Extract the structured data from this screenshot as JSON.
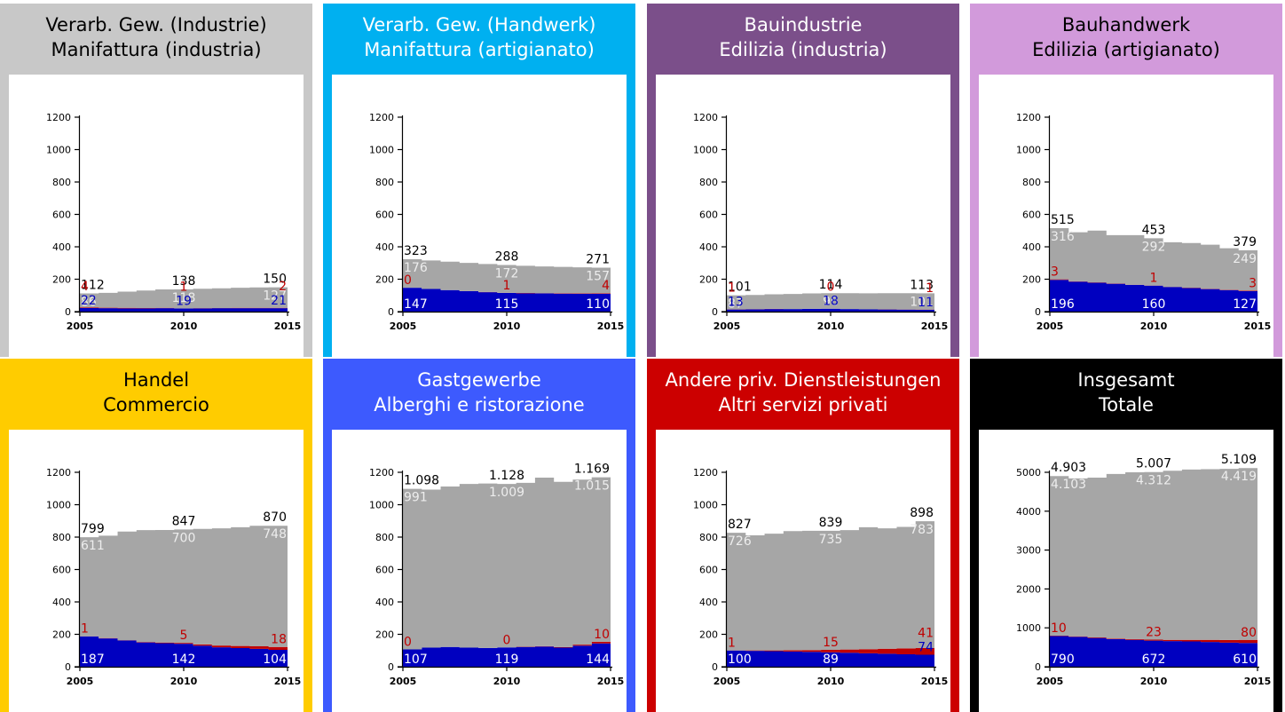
{
  "colors": {
    "gray": "#a6a6a6",
    "gray_label": "#ededed",
    "gray_label_outside": "#a6a6a6",
    "red": "#c00000",
    "blue": "#0000c0",
    "blue_label_inside": "#ffffff"
  },
  "charts": [
    {
      "id": "industria",
      "title": [
        "Verarb. Gew. (Industrie)",
        "Manifattura (industria)"
      ],
      "bg": "#c8c8c8",
      "title_color": "#000000",
      "chart_data": {
        "type": "area",
        "x": [
          2005,
          2006,
          2007,
          2008,
          2009,
          2010,
          2011,
          2012,
          2013,
          2014,
          2015
        ],
        "x_ticks": [
          "2005",
          "2010",
          "2015"
        ],
        "y_ticks": [
          "0",
          "200",
          "400",
          "600",
          "800",
          "1000",
          "1200"
        ],
        "ylim": [
          0,
          1200
        ],
        "series": [
          {
            "color": "blue",
            "values": [
              22,
              21,
              20,
              20,
              21,
              19,
              20,
              21,
              21,
              21,
              21
            ]
          },
          {
            "color": "red",
            "values": [
              4,
              3,
              3,
              2,
              2,
              1,
              1,
              1,
              2,
              2,
              2
            ]
          },
          {
            "color": "gray",
            "values": [
              86,
              92,
              100,
              108,
              114,
              118,
              120,
              122,
              124,
              126,
              127
            ]
          }
        ],
        "totals": [
          "112",
          "138",
          "150"
        ],
        "labels": {
          "gray": [
            "86",
            "118",
            "127"
          ],
          "red": [
            "4",
            "1",
            "2"
          ],
          "blue": [
            "22",
            "19",
            "21"
          ]
        }
      }
    },
    {
      "id": "artigianato",
      "title": [
        "Verarb. Gew. (Handwerk)",
        "Manifattura (artigianato)"
      ],
      "bg": "#00b0f0",
      "title_color": "#ffffff",
      "chart_data": {
        "type": "area",
        "x": [
          2005,
          2006,
          2007,
          2008,
          2009,
          2010,
          2011,
          2012,
          2013,
          2014,
          2015
        ],
        "x_ticks": [
          "2005",
          "2010",
          "2015"
        ],
        "y_ticks": [
          "0",
          "200",
          "400",
          "600",
          "800",
          "1000",
          "1200"
        ],
        "ylim": [
          0,
          1200
        ],
        "series": [
          {
            "color": "blue",
            "values": [
              147,
              140,
              133,
              126,
              120,
              115,
              113,
              112,
              111,
              110,
              110
            ]
          },
          {
            "color": "red",
            "values": [
              0,
              0,
              0,
              1,
              1,
              1,
              2,
              2,
              3,
              3,
              4
            ]
          },
          {
            "color": "gray",
            "values": [
              176,
              176,
              175,
              174,
              173,
              172,
              168,
              165,
              162,
              160,
              157
            ]
          }
        ],
        "totals": [
          "323",
          "288",
          "271"
        ],
        "labels": {
          "gray": [
            "176",
            "172",
            "157"
          ],
          "red": [
            "0",
            "1",
            "4"
          ],
          "blue": [
            "147",
            "115",
            "110"
          ]
        }
      }
    },
    {
      "id": "bauindustrie",
      "title": [
        "Bauindustrie",
        "Edilizia (industria)"
      ],
      "bg": "#7b4f8a",
      "title_color": "#ffffff",
      "chart_data": {
        "type": "area",
        "x": [
          2005,
          2006,
          2007,
          2008,
          2009,
          2010,
          2011,
          2012,
          2013,
          2014,
          2015
        ],
        "x_ticks": [
          "2005",
          "2010",
          "2015"
        ],
        "y_ticks": [
          "0",
          "200",
          "400",
          "600",
          "800",
          "1000",
          "1200"
        ],
        "ylim": [
          0,
          1200
        ],
        "series": [
          {
            "color": "blue",
            "values": [
              13,
              14,
              16,
              16,
              17,
              18,
              16,
              14,
              13,
              12,
              11
            ]
          },
          {
            "color": "red",
            "values": [
              1,
              1,
              1,
              0,
              0,
              0,
              0,
              0,
              1,
              1,
              1
            ]
          },
          {
            "color": "gray",
            "values": [
              87,
              88,
              90,
              93,
              95,
              96,
              98,
              99,
              100,
              101,
              101
            ]
          }
        ],
        "totals": [
          "101",
          "114",
          "113"
        ],
        "labels": {
          "gray": [
            "87",
            "96",
            "101"
          ],
          "red": [
            "1",
            "0",
            "1"
          ],
          "blue": [
            "13",
            "18",
            "11"
          ]
        }
      }
    },
    {
      "id": "bauhandwerk",
      "title": [
        "Bauhandwerk",
        "Edilizia (artigianato)"
      ],
      "bg": "#d29adb",
      "title_color": "#000000",
      "chart_data": {
        "type": "area",
        "x": [
          2005,
          2006,
          2007,
          2008,
          2009,
          2010,
          2011,
          2012,
          2013,
          2014,
          2015
        ],
        "x_ticks": [
          "2005",
          "2010",
          "2015"
        ],
        "y_ticks": [
          "0",
          "200",
          "400",
          "600",
          "800",
          "1000",
          "1200"
        ],
        "ylim": [
          0,
          1200
        ],
        "series": [
          {
            "color": "blue",
            "values": [
              196,
              185,
              178,
              172,
              165,
              160,
              152,
              145,
              139,
              133,
              127
            ]
          },
          {
            "color": "red",
            "values": [
              3,
              2,
              2,
              2,
              1,
              1,
              1,
              2,
              2,
              2,
              3
            ]
          },
          {
            "color": "gray",
            "values": [
              316,
              303,
              320,
              298,
              306,
              292,
              275,
              276,
              272,
              256,
              249
            ]
          }
        ],
        "totals": [
          "515",
          "453",
          "379"
        ],
        "labels": {
          "gray": [
            "316",
            "292",
            "249"
          ],
          "red": [
            "3",
            "1",
            "3"
          ],
          "blue": [
            "196",
            "160",
            "127"
          ]
        }
      }
    },
    {
      "id": "handel",
      "title": [
        "Handel",
        "Commercio"
      ],
      "bg": "#ffcc00",
      "title_color": "#000000",
      "chart_data": {
        "type": "area",
        "x": [
          2005,
          2006,
          2007,
          2008,
          2009,
          2010,
          2011,
          2012,
          2013,
          2014,
          2015
        ],
        "x_ticks": [
          "2005",
          "2010",
          "2015"
        ],
        "y_ticks": [
          "0",
          "200",
          "400",
          "600",
          "800",
          "1000",
          "1200"
        ],
        "ylim": [
          0,
          1200
        ],
        "series": [
          {
            "color": "blue",
            "values": [
              187,
              175,
              162,
              150,
              145,
              142,
              130,
              120,
              115,
              110,
              104
            ]
          },
          {
            "color": "red",
            "values": [
              1,
              2,
              2,
              3,
              4,
              5,
              8,
              11,
              13,
              16,
              18
            ]
          },
          {
            "color": "gray",
            "values": [
              611,
              632,
              670,
              690,
              695,
              700,
              713,
              723,
              733,
              744,
              748
            ]
          }
        ],
        "totals": [
          "799",
          "847",
          "870"
        ],
        "labels": {
          "gray": [
            "611",
            "700",
            "748"
          ],
          "red": [
            "1",
            "5",
            "18"
          ],
          "blue": [
            "187",
            "142",
            "104"
          ]
        }
      }
    },
    {
      "id": "gastgewerbe",
      "title": [
        "Gastgewerbe",
        "Alberghi e ristorazione"
      ],
      "bg": "#3d5afe",
      "title_color": "#ffffff",
      "chart_data": {
        "type": "area",
        "x": [
          2005,
          2006,
          2007,
          2008,
          2009,
          2010,
          2011,
          2012,
          2013,
          2014,
          2015
        ],
        "x_ticks": [
          "2005",
          "2010",
          "2015"
        ],
        "y_ticks": [
          "0",
          "200",
          "400",
          "600",
          "800",
          "1000",
          "1200"
        ],
        "ylim": [
          0,
          1200
        ],
        "series": [
          {
            "color": "blue",
            "values": [
              107,
              118,
              122,
              118,
              116,
              119,
              122,
              125,
              118,
              130,
              144
            ]
          },
          {
            "color": "red",
            "values": [
              0,
              0,
              0,
              0,
              0,
              0,
              1,
              2,
              3,
              6,
              10
            ]
          },
          {
            "color": "gray",
            "values": [
              991,
              975,
              990,
              1010,
              1015,
              1009,
              1012,
              1040,
              1020,
              1019,
              1015
            ]
          }
        ],
        "totals": [
          "1.098",
          "1.128",
          "1.169"
        ],
        "labels": {
          "gray": [
            "991",
            "1.009",
            "1.015"
          ],
          "red": [
            "0",
            "0",
            "10"
          ],
          "blue": [
            "107",
            "119",
            "144"
          ]
        }
      }
    },
    {
      "id": "dienstleistungen",
      "title": [
        "Andere priv. Dienstleistungen",
        "Altri servizi privati"
      ],
      "bg": "#cc0000",
      "title_color": "#ffffff",
      "chart_data": {
        "type": "area",
        "x": [
          2005,
          2006,
          2007,
          2008,
          2009,
          2010,
          2011,
          2012,
          2013,
          2014,
          2015
        ],
        "x_ticks": [
          "2005",
          "2010",
          "2015"
        ],
        "y_ticks": [
          "0",
          "200",
          "400",
          "600",
          "800",
          "1000",
          "1200"
        ],
        "ylim": [
          0,
          1200
        ],
        "series": [
          {
            "color": "blue",
            "values": [
              100,
              98,
              96,
              94,
              92,
              89,
              86,
              83,
              80,
              77,
              74
            ]
          },
          {
            "color": "red",
            "values": [
              1,
              3,
              5,
              8,
              11,
              15,
              20,
              25,
              31,
              36,
              41
            ]
          },
          {
            "color": "gray",
            "values": [
              726,
              710,
              720,
              735,
              736,
              735,
              737,
              753,
              743,
              750,
              783
            ]
          }
        ],
        "totals": [
          "827",
          "839",
          "898"
        ],
        "labels": {
          "gray": [
            "726",
            "735",
            "783"
          ],
          "red": [
            "1",
            "15",
            "41"
          ],
          "blue": [
            "100",
            "89",
            "74"
          ]
        }
      }
    },
    {
      "id": "insgesamt",
      "title": [
        "Insgesamt",
        "Totale"
      ],
      "bg": "#000000",
      "title_color": "#ffffff",
      "chart_data": {
        "type": "area",
        "x": [
          2005,
          2006,
          2007,
          2008,
          2009,
          2010,
          2011,
          2012,
          2013,
          2014,
          2015
        ],
        "x_ticks": [
          "2005",
          "2010",
          "2015"
        ],
        "y_ticks": [
          "0",
          "1000",
          "2000",
          "3000",
          "4000",
          "5000"
        ],
        "ylim": [
          0,
          5000
        ],
        "series": [
          {
            "color": "blue",
            "values": [
              790,
              770,
              740,
              710,
              690,
              672,
              660,
              650,
              635,
              620,
              610
            ]
          },
          {
            "color": "red",
            "values": [
              10,
              12,
              14,
              16,
              20,
              23,
              30,
              40,
              55,
              68,
              80
            ]
          },
          {
            "color": "gray",
            "values": [
              4103,
              4060,
              4110,
              4230,
              4290,
              4312,
              4350,
              4380,
              4390,
              4400,
              4419
            ]
          }
        ],
        "totals": [
          "4.903",
          "5.007",
          "5.109"
        ],
        "labels": {
          "gray": [
            "4.103",
            "4.312",
            "4.419"
          ],
          "red": [
            "10",
            "23",
            "80"
          ],
          "blue": [
            "790",
            "672",
            "610"
          ]
        }
      }
    }
  ]
}
